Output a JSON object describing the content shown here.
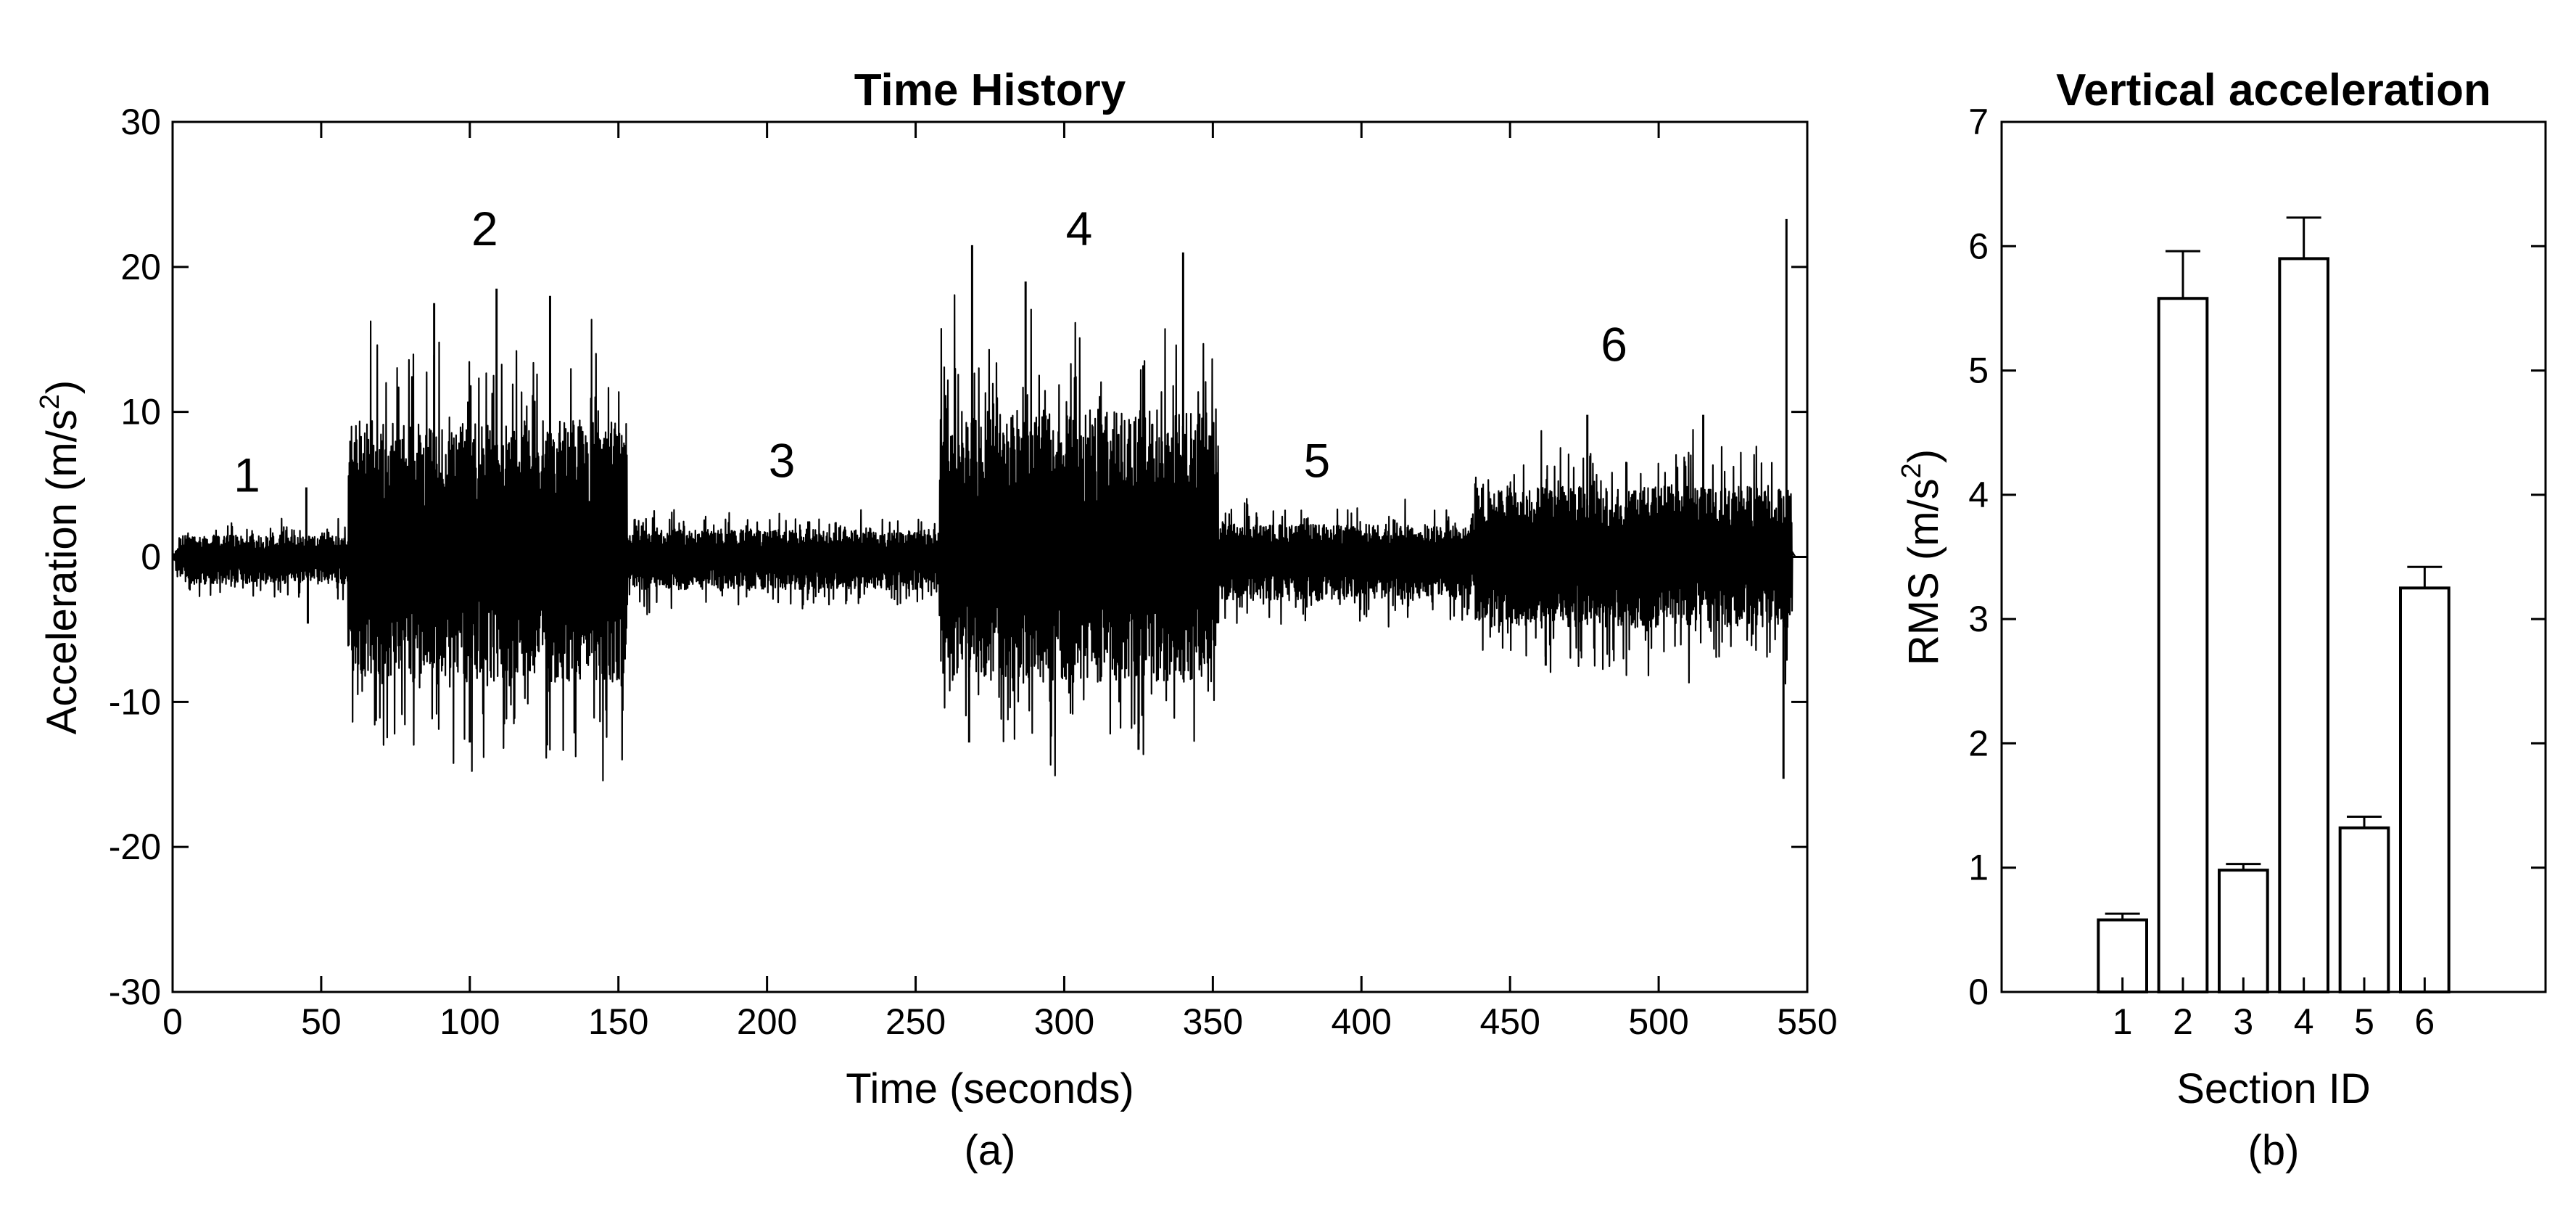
{
  "chart_data": [
    {
      "type": "line",
      "panel_label": "(a)",
      "title": "Time History",
      "xlabel": "Time (seconds)",
      "ylabel": "Acceleration (m/s",
      "ylabel_sup": "2",
      "ylabel_close": ")",
      "xlim": [
        0,
        550
      ],
      "ylim": [
        -30,
        30
      ],
      "xticks": [
        0,
        50,
        100,
        150,
        200,
        250,
        300,
        350,
        400,
        450,
        500,
        550
      ],
      "yticks": [
        -30,
        -20,
        -10,
        0,
        10,
        20,
        30
      ],
      "grid": false,
      "sections": [
        {
          "label": "1",
          "t_start": 0,
          "t_end": 59,
          "envelope_pos": 2.0,
          "envelope_neg": -2.5,
          "label_x": 25,
          "label_y": 4.5
        },
        {
          "label": "2",
          "t_start": 59,
          "t_end": 153,
          "envelope_pos": 12.5,
          "envelope_neg": -11.5,
          "label_x": 105,
          "label_y": 21.5
        },
        {
          "label": "3",
          "t_start": 153,
          "t_end": 258,
          "envelope_pos": 2.5,
          "envelope_neg": -3.0,
          "label_x": 205,
          "label_y": 5.5
        },
        {
          "label": "4",
          "t_start": 258,
          "t_end": 352,
          "envelope_pos": 13.5,
          "envelope_neg": -11.5,
          "label_x": 305,
          "label_y": 21.5
        },
        {
          "label": "5",
          "t_start": 352,
          "t_end": 438,
          "envelope_pos": 3.0,
          "envelope_neg": -4.0,
          "label_x": 385,
          "label_y": 5.5
        },
        {
          "label": "6",
          "t_start": 438,
          "t_end": 545,
          "envelope_pos": 6.5,
          "envelope_neg": -6.5,
          "label_x": 485,
          "label_y": 13.5
        }
      ],
      "peaks": [
        {
          "t": 45,
          "v": 4.8
        },
        {
          "t": 45.5,
          "v": -4.6
        },
        {
          "t": 88,
          "v": 17.5
        },
        {
          "t": 109,
          "v": 18.5
        },
        {
          "t": 127,
          "v": 18.0
        },
        {
          "t": 100,
          "v": -12.8
        },
        {
          "t": 126,
          "v": -13.0
        },
        {
          "t": 269,
          "v": 21.5
        },
        {
          "t": 287,
          "v": 19.0
        },
        {
          "t": 340,
          "v": 21.0
        },
        {
          "t": 268,
          "v": -12.8
        },
        {
          "t": 325,
          "v": -13.3
        },
        {
          "t": 476,
          "v": 9.8
        },
        {
          "t": 515,
          "v": 9.8
        },
        {
          "t": 462,
          "v": -7.5
        },
        {
          "t": 543,
          "v": 23.3
        },
        {
          "t": 542,
          "v": -15.3
        }
      ]
    },
    {
      "type": "bar",
      "panel_label": "(b)",
      "title": "Vertical acceleration",
      "xlabel": "Section ID",
      "ylabel": "RMS (m/s",
      "ylabel_sup": "2",
      "ylabel_close": ")",
      "categories": [
        "1",
        "2",
        "3",
        "4",
        "5",
        "6"
      ],
      "values": [
        0.58,
        5.58,
        0.98,
        5.9,
        1.32,
        3.25
      ],
      "error_upper": [
        0.05,
        0.38,
        0.05,
        0.33,
        0.09,
        0.17
      ],
      "ylim": [
        0,
        7
      ],
      "yticks": [
        0,
        1,
        2,
        3,
        4,
        5,
        6,
        7
      ],
      "grid": false
    }
  ]
}
